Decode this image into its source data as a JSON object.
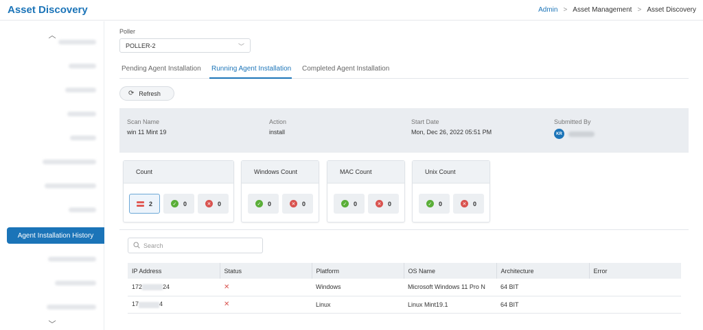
{
  "app": {
    "title": "Asset Discovery"
  },
  "breadcrumb": {
    "items": [
      "Admin",
      "Asset Management",
      "Asset Discovery"
    ]
  },
  "sidebar": {
    "active_label": "Agent Installation History"
  },
  "poller": {
    "label": "Poller",
    "value": "POLLER-2"
  },
  "tabs": [
    {
      "label": "Pending Agent Installation",
      "active": false
    },
    {
      "label": "Running Agent Installation",
      "active": true
    },
    {
      "label": "Completed Agent Installation",
      "active": false
    }
  ],
  "refresh_label": "Refresh",
  "scan": {
    "scan_name_label": "Scan Name",
    "scan_name": "win 11 Mint 19",
    "action_label": "Action",
    "action": "install",
    "start_date_label": "Start Date",
    "start_date": "Mon, Dec 26, 2022 05:51 PM",
    "submitted_by_label": "Submitted By",
    "submitted_by_initials": "KR"
  },
  "counts": [
    {
      "title": "Count",
      "total": "2",
      "success": "0",
      "failed": "0"
    },
    {
      "title": "Windows Count",
      "success": "0",
      "failed": "0"
    },
    {
      "title": "MAC Count",
      "success": "0",
      "failed": "0"
    },
    {
      "title": "Unix Count",
      "success": "0",
      "failed": "0"
    }
  ],
  "search": {
    "placeholder": "Search"
  },
  "table": {
    "headers": [
      "IP Address",
      "Status",
      "Platform",
      "OS Name",
      "Architecture",
      "Error"
    ],
    "rows": [
      {
        "ip_prefix": "172",
        "ip_suffix": "24",
        "status": "✕",
        "platform": "Windows",
        "os_name": "Microsoft Windows 11 Pro N",
        "architecture": "64 BIT",
        "error": ""
      },
      {
        "ip_prefix": "17",
        "ip_suffix": "4",
        "status": "✕",
        "platform": "Linux",
        "os_name": "Linux Mint19.1",
        "architecture": "64 BIT",
        "error": ""
      }
    ]
  },
  "colors": {
    "brand": "#1b74b8",
    "success": "#5aae38",
    "danger": "#d9534f"
  },
  "icons": {
    "refresh": "refresh-icon",
    "search": "search-icon",
    "chevron": "chevron-down-icon"
  }
}
